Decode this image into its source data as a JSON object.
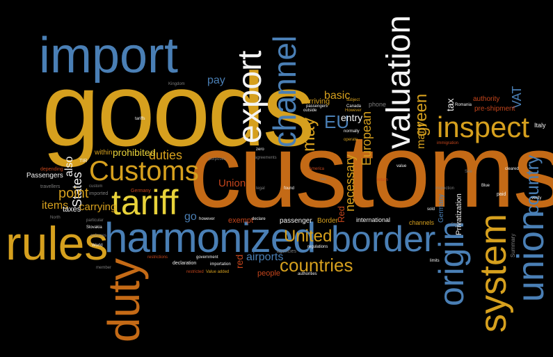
{
  "words": {
    "customs": "customs",
    "goods": "goods",
    "import": "import",
    "duty": "duty",
    "harmonized": "harmonized",
    "rules": "rules",
    "border": "border",
    "system": "system",
    "union": "union",
    "origin": "origin",
    "tariff": "tariff",
    "Customs": "Customs",
    "export": "export",
    "valuation": "valuation",
    "channel": "channel",
    "inspect": "inspect",
    "countries": "countries",
    "United": "United",
    "country": "country",
    "may": "may",
    "EU": "EU",
    "green": "green",
    "duties": "duties",
    "prohibited": "prohibited",
    "point": "point",
    "States": "States",
    "items": "items",
    "carrying": "carrying",
    "Union": "Union",
    "European": "European",
    "taxes": "taxes",
    "also": "also",
    "many": "many",
    "tax": "tax",
    "VAT": "VAT",
    "pay": "pay",
    "basic": "basic",
    "entry": "entry",
    "arriving": "arriving",
    "Passengers": "Passengers",
    "within": "within",
    "go": "go",
    "airports": "airports",
    "people": "people",
    "red": "red",
    "Red": "Red",
    "international": "international",
    "Border": "Border",
    "passenger": "passenger",
    "exempt": "exempt",
    "declaration": "declaration",
    "necessary": "necessary",
    "authority": "authority",
    "pre_shipment": "pre-shipment",
    "Italy": "Italy",
    "Privatization": "Privatization",
    "channels": "channels",
    "Germany": "Germany",
    "imported": "imported",
    "custom": "custom",
    "travellers": "travellers",
    "depending": "depending",
    "Slovakia": "Slovakia",
    "particular": "particular",
    "enforces": "enforces",
    "member": "member",
    "restrictions": "restrictions",
    "restricted": "restricted",
    "value_added": "Value added",
    "government": "government",
    "importation": "importation",
    "agencies": "agencies",
    "authorities": "authorities",
    "regulations": "regulations",
    "limits": "limits",
    "paid": "paid",
    "verify": "verify",
    "Czech": "Czech",
    "sold": "sold",
    "Blue": "Blue",
    "cleared": "cleared",
    "America": "America",
    "value": "value",
    "return": "return",
    "found": "found",
    "law": "law",
    "legal": "legal",
    "declare": "declare",
    "however": "however",
    "zero": "zero",
    "agreements": "agreements",
    "operate": "operate",
    "normally": "normally",
    "However": "However",
    "Canada": "Canada",
    "outside": "outside",
    "passengers": "passengers",
    "subject": "subject",
    "phone": "phone",
    "immigration": "immigration",
    "Romania": "Romania",
    "Kingdom": "Kingdom",
    "tariffs": "tariffs",
    "World": "World",
    "North": "North",
    "Summary": "Summary",
    "See": "See",
    "inspection": "inspection",
    "purposes": "purposes",
    "TIR": "TIR"
  }
}
